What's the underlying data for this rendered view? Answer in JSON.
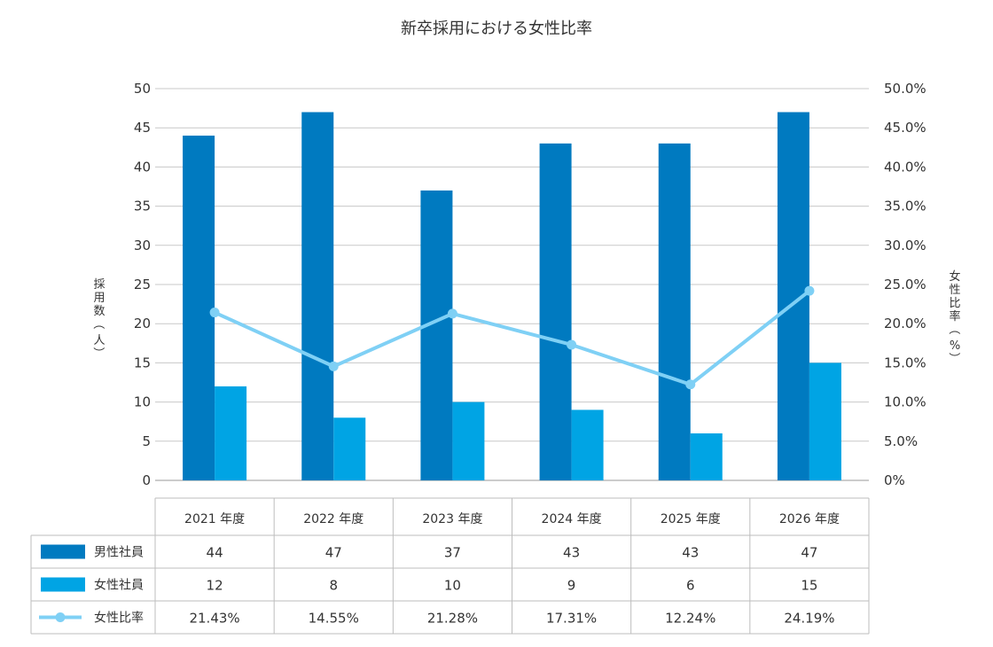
{
  "chart_data": {
    "type": "bar",
    "title": "新卒採用における女性比率",
    "categories": [
      "2021 年度",
      "2022 年度",
      "2023 年度",
      "2024 年度",
      "2025 年度",
      "2026 年度"
    ],
    "series": [
      {
        "name": "男性社員",
        "kind": "bar",
        "axis": "left",
        "color": "#007ac0",
        "values": [
          44,
          47,
          37,
          43,
          43,
          47
        ]
      },
      {
        "name": "女性社員",
        "kind": "bar",
        "axis": "left",
        "color": "#00a4e4",
        "values": [
          12,
          8,
          10,
          9,
          6,
          15
        ]
      },
      {
        "name": "女性比率",
        "kind": "line",
        "axis": "right",
        "color": "#7fd0f5",
        "values": [
          21.43,
          14.55,
          21.28,
          17.31,
          12.24,
          24.19
        ],
        "labels": [
          "21.43%",
          "14.55%",
          "21.28%",
          "17.31%",
          "12.24%",
          "24.19%"
        ]
      }
    ],
    "ylabel_left": "採用数（人）",
    "ylabel_right": "女性比率（%）",
    "ylim_left": [
      0,
      50
    ],
    "ylim_right": [
      0,
      50
    ],
    "yticks_left": [
      "0",
      "5",
      "10",
      "15",
      "20",
      "25",
      "30",
      "35",
      "40",
      "45",
      "50"
    ],
    "yticks_right": [
      "0%",
      "5.0%",
      "10.0%",
      "15.0%",
      "20.0%",
      "25.0%",
      "30.0%",
      "35.0%",
      "40.0%",
      "45.0%",
      "50.0%"
    ],
    "grid": true,
    "legend": "data table below chart"
  }
}
